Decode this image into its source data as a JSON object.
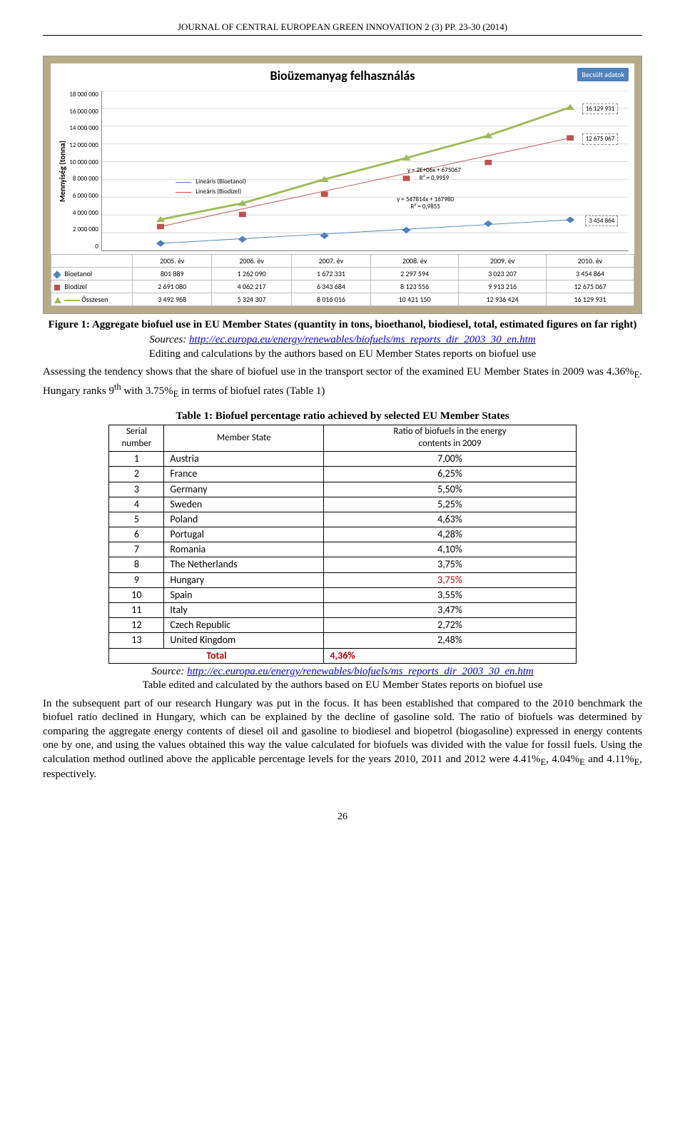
{
  "journal_header": "JOURNAL OF CENTRAL EUROPEAN GREEN INNOVATION 2 (3) PP. 23-30 (2014)",
  "chart": {
    "type": "line+scatter with trendlines",
    "title": "Bioüzemanyag felhasználás",
    "est_badge": "Becsült adatok",
    "y_axis_label": "Mennyiség (tonna)",
    "ylim": [
      0,
      18000000
    ],
    "ytick_step": 2000000,
    "y_ticks": [
      "18 000 000",
      "16 000 000",
      "14 000 000",
      "12 000 000",
      "10 000 000",
      "8 000 000",
      "6 000 000",
      "4 000 000",
      "2 000 000",
      "0"
    ],
    "categories": [
      "2005. év",
      "2006. év",
      "2007. év",
      "2008. év",
      "2009. év",
      "2010. év"
    ],
    "series": {
      "bioetanol": {
        "label": "Bioetanol",
        "marker": "diamond",
        "color": "#4f81bd",
        "values": [
          801889,
          1262090,
          1672331,
          2297594,
          3023207,
          3454864
        ]
      },
      "biodizel": {
        "label": "Biodízel",
        "marker": "square",
        "color": "#c0504d",
        "values": [
          2691080,
          4062217,
          6343684,
          8123556,
          9913216,
          12675067
        ]
      },
      "osszesen": {
        "label": "Összesen",
        "marker": "triangle",
        "color": "#9bbb59",
        "line_color": "#9bbb59",
        "values": [
          3492968,
          5324307,
          8016016,
          10421150,
          12936424,
          16129931
        ]
      }
    },
    "trendlines": [
      {
        "label": "Lineáris (Bioetanol)",
        "color": "#4f81bd"
      },
      {
        "label": "Lineáris (Biodízel)",
        "color": "#c0504d"
      }
    ],
    "equations": {
      "biodizel": {
        "eq": "y = 2E+06x + 675067",
        "r2": "R² = 0,9959"
      },
      "bioetanol": {
        "eq": "y = 547814x + 167980",
        "r2": "R² = 0,9855"
      }
    },
    "callouts": {
      "osszesen_last": "16 129 931",
      "biodizel_last": "12 675 067",
      "bioetanol_last": "3 454 864"
    },
    "table_rows": [
      [
        "Bioetanol",
        "801 889",
        "1 262 090",
        "1 672 331",
        "2 297 594",
        "3 023 207",
        "3 454 864"
      ],
      [
        "Biodízel",
        "2 691 080",
        "4 062 217",
        "6 343 684",
        "8 123 556",
        "9 913 216",
        "12 675 067"
      ],
      [
        "Összesen",
        "3 492 968",
        "5 324 307",
        "8 016 016",
        "10 421 150",
        "12 936 424",
        "16 129 931"
      ]
    ],
    "background_color": "#ffffff",
    "frame_color": "#b7ab8a",
    "grid_color": "#d9d9d9"
  },
  "fig1": {
    "caption": "Figure 1: Aggregate biofuel use in EU Member States (quantity in tons, bioethanol, biodiesel, total, estimated figures on far right)",
    "sources_label": "Sources:",
    "url": "http://ec.europa.eu/energy/renewables/biofuels/ms_reports_dir_2003_30_en.htm",
    "edit_note": "Editing and calculations by the authors based on EU Member States reports on biofuel use"
  },
  "para1": "Assessing the tendency shows that the share of biofuel use in the transport sector of the examined EU Member States in 2009 was 4.36%E. Hungary ranks 9th with 3.75%E in terms of biofuel rates (Table 1)",
  "table1": {
    "caption": "Table 1: Biofuel percentage ratio achieved by selected EU Member States",
    "headers": {
      "col1a": "Serial",
      "col1b": "number",
      "col2": "Member State",
      "col3a": "Ratio of biofuels in the energy",
      "col3b": "contents in 2009"
    },
    "rows": [
      {
        "n": "1",
        "state": "Austria",
        "ratio": "7,00%"
      },
      {
        "n": "2",
        "state": "France",
        "ratio": "6,25%"
      },
      {
        "n": "3",
        "state": "Germany",
        "ratio": "5,50%"
      },
      {
        "n": "4",
        "state": "Sweden",
        "ratio": "5,25%"
      },
      {
        "n": "5",
        "state": "Poland",
        "ratio": "4,63%"
      },
      {
        "n": "6",
        "state": "Portugal",
        "ratio": "4,28%"
      },
      {
        "n": "7",
        "state": "Romania",
        "ratio": "4,10%"
      },
      {
        "n": "8",
        "state": "The Netherlands",
        "ratio": "3,75%"
      },
      {
        "n": "9",
        "state": "Hungary",
        "ratio": "3,75%",
        "highlight": true
      },
      {
        "n": "10",
        "state": "Spain",
        "ratio": "3,55%"
      },
      {
        "n": "11",
        "state": "Italy",
        "ratio": "3,47%"
      },
      {
        "n": "12",
        "state": "Czech Republic",
        "ratio": "2,72%"
      },
      {
        "n": "13",
        "state": "United Kingdom",
        "ratio": "2,48%"
      }
    ],
    "total_label": "Total",
    "total_value": "4,36%",
    "source_label": "Source:",
    "source_url": "http://ec.europa.eu/energy/renewables/biofuels/ms_reports_dir_2003_30_en.htm",
    "source_note": "Table edited and calculated by the authors based on EU Member States reports on biofuel use"
  },
  "para2": "In the subsequent part of our research Hungary was put in the focus. It has been established that compared to the 2010 benchmark the biofuel ratio declined in Hungary, which can be explained by the decline of gasoline sold. The ratio of biofuels was determined by comparing the aggregate energy contents of diesel oil and gasoline to biodiesel and biopetrol (biogasoline) expressed in energy contents one by one, and using the values obtained this way the value calculated for biofuels was divided with the value for fossil fuels. Using the calculation method outlined above the applicable percentage levels for the years 2010, 2011 and 2012 were 4.41%E, 4.04%E and 4.11%E, respectively.",
  "page_number": "26"
}
